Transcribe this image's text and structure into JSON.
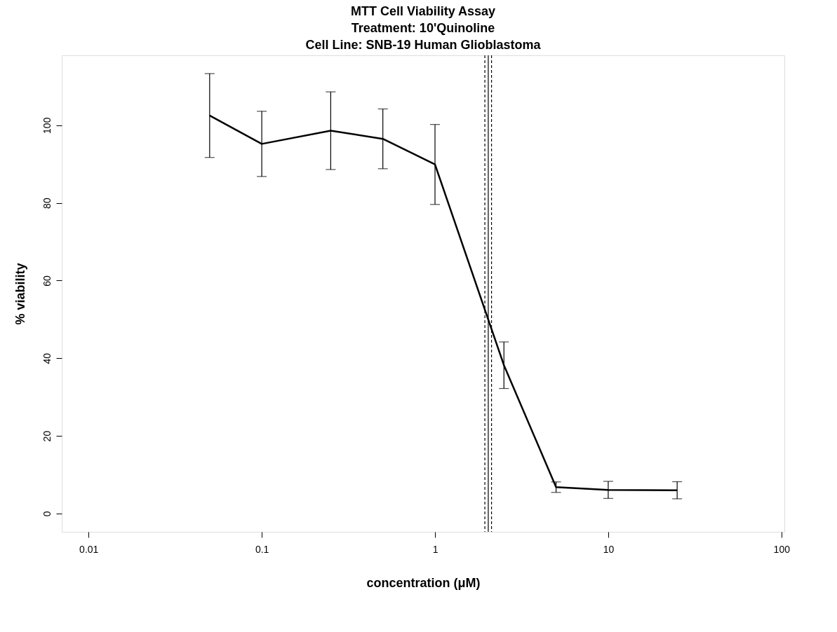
{
  "chart_data": {
    "type": "line",
    "title": "MTT Cell Viability Assay\nTreatment: 10'Quinoline\nCell Line: SNB-19 Human Glioblastoma",
    "xlabel": "concentration (μM)",
    "ylabel": "% viability",
    "x": [
      0.05,
      0.1,
      0.25,
      0.5,
      1,
      2.5,
      5,
      10,
      25
    ],
    "series": [
      {
        "color": "#000000",
        "values": [
          102.5,
          95.2,
          98.6,
          96.5,
          89.9,
          38.2,
          6.8,
          6.1,
          6.0
        ],
        "errors": [
          10.8,
          8.4,
          10,
          7.7,
          10.3,
          6,
          1.35,
          2.2,
          2.2
        ]
      }
    ],
    "log": "x",
    "xlim": [
      0.007,
      104
    ],
    "ylim": [
      -4.7,
      118
    ],
    "xticks": [
      0.01,
      0.1,
      1,
      10,
      100
    ],
    "yticks": [
      0,
      20,
      40,
      60,
      80,
      100
    ],
    "ref_lines": [
      {
        "axis": "x",
        "value": 1.94,
        "line_style": "dashed",
        "color": "#000000"
      },
      {
        "axis": "x",
        "value": 2.03,
        "line_style": "solid",
        "color": "#000000"
      },
      {
        "axis": "x",
        "value": 2.12,
        "line_style": "dashed",
        "color": "#000000"
      }
    ],
    "grid": false,
    "marker": "none",
    "line_style": "solid"
  }
}
